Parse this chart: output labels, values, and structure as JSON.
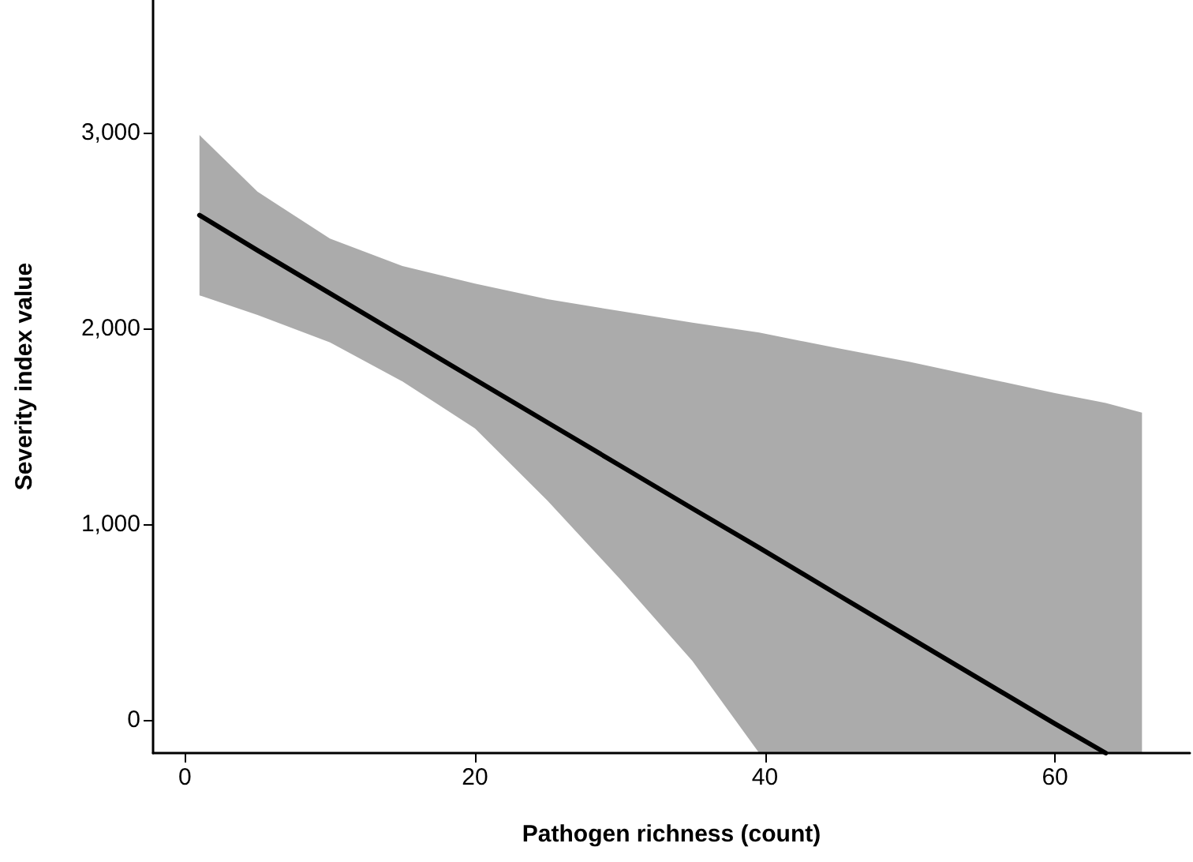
{
  "chart_data": {
    "type": "line",
    "xlabel": "Pathogen richness (count)",
    "ylabel": "Severity index value",
    "series": [
      {
        "color": "#000000",
        "x": [
          1,
          5,
          10,
          15,
          20,
          25,
          30,
          35,
          39.6,
          45,
          50,
          55,
          60,
          63.5,
          66
        ],
        "values": [
          2580,
          2400,
          2180,
          1960,
          1740,
          1520,
          1300,
          1080,
          880,
          640,
          420,
          200,
          -20,
          -170,
          null
        ],
        "lower": [
          2170,
          2070,
          1930,
          1730,
          1490,
          1120,
          720,
          300,
          -170,
          -170,
          -170,
          -170,
          -170,
          -170,
          -170
        ],
        "upper": [
          2990,
          2700,
          2460,
          2320,
          2230,
          2150,
          2090,
          2030,
          1980,
          1900,
          1830,
          1750,
          1670,
          1620,
          1570
        ]
      }
    ],
    "xlim": [
      -2.2,
      69.3
    ],
    "xticks": [
      0,
      20,
      40,
      60
    ],
    "ylim": [
      -170,
      3680
    ],
    "yticks": [
      {
        "value": 0,
        "label": "0"
      },
      {
        "value": 1000,
        "label": "1,000"
      },
      {
        "value": 2000,
        "label": "2,000"
      },
      {
        "value": 3000,
        "label": "3,000"
      }
    ],
    "grid": false,
    "marker": "none",
    "line_style": "solid"
  }
}
